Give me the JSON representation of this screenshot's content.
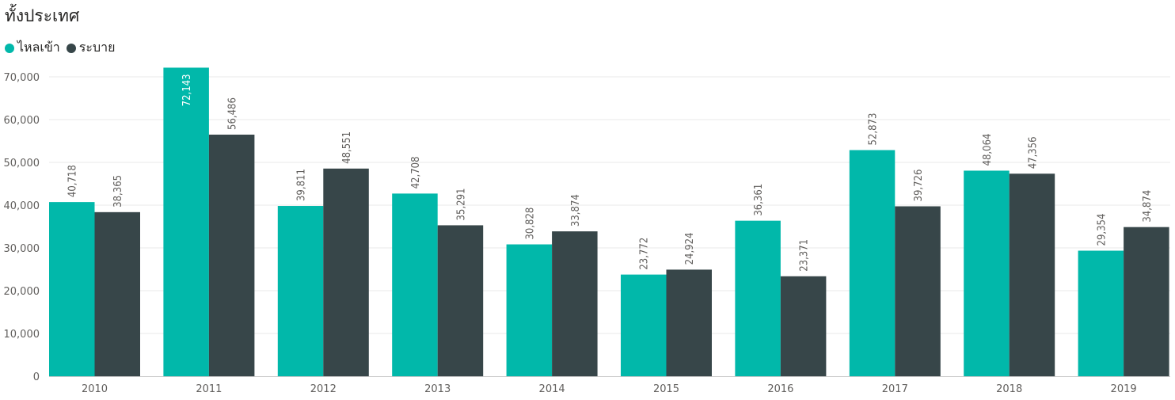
{
  "chart_data": {
    "type": "bar",
    "title": "ทั้งประเทศ",
    "categories": [
      "2010",
      "2011",
      "2012",
      "2013",
      "2014",
      "2015",
      "2016",
      "2017",
      "2018",
      "2019"
    ],
    "series": [
      {
        "name": "ไหลเข้า",
        "color": "#01b8aa",
        "values": [
          40718,
          72143,
          39811,
          42708,
          30828,
          23772,
          36361,
          52873,
          48064,
          29354
        ],
        "labels": [
          "40,718",
          "72,143",
          "39,811",
          "42,708",
          "30,828",
          "23,772",
          "36,361",
          "52,873",
          "48,064",
          "29,354"
        ]
      },
      {
        "name": "ระบาย",
        "color": "#374649",
        "values": [
          38365,
          56486,
          48551,
          35291,
          33874,
          24924,
          23371,
          39726,
          47356,
          34874
        ],
        "labels": [
          "38,365",
          "56,486",
          "48,551",
          "35,291",
          "33,874",
          "24,924",
          "23,371",
          "39,726",
          "47,356",
          "34,874"
        ]
      }
    ],
    "ylim": [
      0,
      70000
    ],
    "yticks": [
      "0",
      "10,000",
      "20,000",
      "30,000",
      "40,000",
      "50,000",
      "60,000",
      "70,000"
    ],
    "ytick_values": [
      0,
      10000,
      20000,
      30000,
      40000,
      50000,
      60000,
      70000
    ],
    "grid": true,
    "legend": "top-left",
    "xlabel": "",
    "ylabel": ""
  }
}
